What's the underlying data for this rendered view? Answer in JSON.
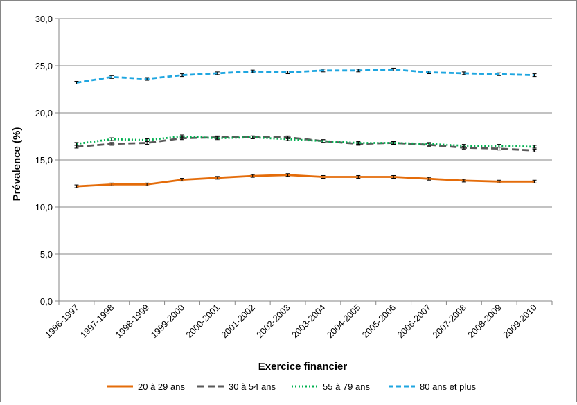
{
  "chart_data": {
    "type": "line",
    "title": "",
    "xlabel": "Exercice financier",
    "ylabel": "Prévalence (%)",
    "ylim": [
      0,
      30
    ],
    "ytick_step": 5,
    "yticks": [
      "0,0",
      "5,0",
      "10,0",
      "15,0",
      "20,0",
      "25,0",
      "30,0"
    ],
    "grid": "horizontal",
    "legend_position": "bottom",
    "categories": [
      "1996-1997",
      "1997-1998",
      "1998-1999",
      "1999-2000",
      "2000-2001",
      "2001-2002",
      "2002-2003",
      "2003-2004",
      "2004-2005",
      "2005-2006",
      "2006-2007",
      "2007-2008",
      "2008-2009",
      "2009-2010"
    ],
    "series": [
      {
        "name": "20 à 29 ans",
        "color": "#E46C0A",
        "dash": "solid",
        "values": [
          12.2,
          12.4,
          12.4,
          12.9,
          13.1,
          13.3,
          13.4,
          13.2,
          13.2,
          13.2,
          13.0,
          12.8,
          12.7,
          12.7
        ]
      },
      {
        "name": "30 à 54 ans",
        "color": "#595959",
        "dash": "longdash",
        "values": [
          16.4,
          16.7,
          16.8,
          17.3,
          17.4,
          17.4,
          17.4,
          17.0,
          16.7,
          16.8,
          16.6,
          16.3,
          16.2,
          16.0
        ]
      },
      {
        "name": "55 à 79 ans",
        "color": "#00B050",
        "dash": "dot",
        "values": [
          16.7,
          17.2,
          17.1,
          17.5,
          17.3,
          17.4,
          17.2,
          17.0,
          16.8,
          16.8,
          16.7,
          16.5,
          16.5,
          16.4
        ]
      },
      {
        "name": "80 ans et plus",
        "color": "#1FA6E0",
        "dash": "dash",
        "values": [
          23.2,
          23.8,
          23.6,
          24.0,
          24.2,
          24.4,
          24.3,
          24.5,
          24.5,
          24.6,
          24.3,
          24.2,
          24.1,
          24.0
        ]
      }
    ]
  }
}
